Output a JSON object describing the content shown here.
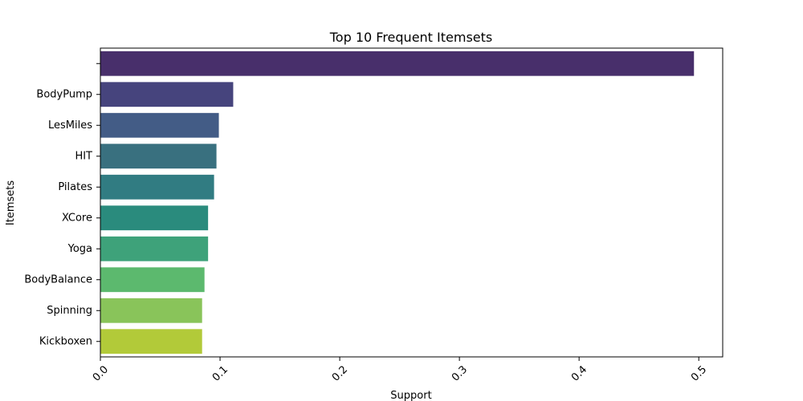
{
  "chart_data": {
    "type": "bar",
    "orientation": "horizontal",
    "title": "Top 10 Frequent Itemsets",
    "xlabel": "Support",
    "ylabel": "Itemsets",
    "categories": [
      "",
      "BodyPump",
      "LesMiles",
      "HIT",
      "Pilates",
      "XCore",
      "Yoga",
      "BodyBalance",
      "Spinning",
      "Kickboxen"
    ],
    "values": [
      0.496,
      0.111,
      0.099,
      0.097,
      0.095,
      0.09,
      0.09,
      0.087,
      0.085,
      0.085
    ],
    "xlim": [
      0.0,
      0.52
    ],
    "xticks": [
      0.0,
      0.1,
      0.2,
      0.3,
      0.4,
      0.5
    ],
    "xtick_labels": [
      "0.0",
      "0.1",
      "0.2",
      "0.3",
      "0.4",
      "0.5"
    ],
    "xtick_rotation": 45,
    "grid": false,
    "palette": "viridis",
    "colors": [
      "#482f6b",
      "#46447d",
      "#435c86",
      "#39707f",
      "#317c82",
      "#2a8b7d",
      "#3ea27a",
      "#5cb96e",
      "#89c45a",
      "#b2ca39"
    ]
  }
}
